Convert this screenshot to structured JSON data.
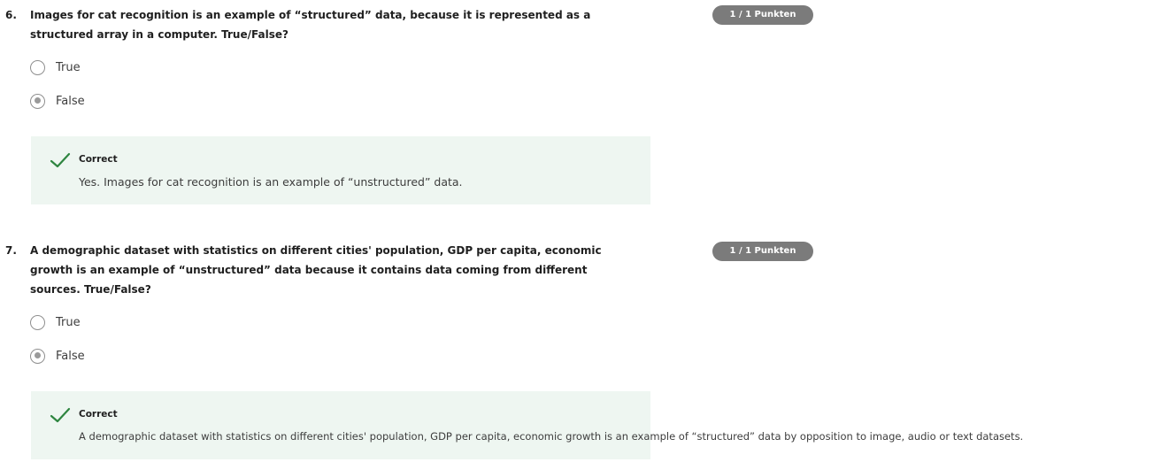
{
  "questions": [
    {
      "number": "6.",
      "prompt": "Images for cat recognition is an example of “structured” data, because it is represented as a structured array in a computer. True/False?",
      "points": "1 / 1 Punkten",
      "options": [
        {
          "label": "True",
          "selected": false
        },
        {
          "label": "False",
          "selected": true
        }
      ],
      "feedback": {
        "status": "Correct",
        "text": "Yes. Images for cat recognition is an example of “unstructured” data."
      }
    },
    {
      "number": "7.",
      "prompt": "A demographic dataset with statistics on different cities' population, GDP per capita, economic growth is an example of “unstructured” data because it contains data coming from different sources. True/False?",
      "points": "1 / 1 Punkten",
      "options": [
        {
          "label": "True",
          "selected": false
        },
        {
          "label": "False",
          "selected": true
        }
      ],
      "feedback": {
        "status": "Correct",
        "text": "A demographic dataset with statistics on different cities' population, GDP per capita, economic growth is an example of “structured” data by opposition to image, audio or text datasets."
      }
    }
  ],
  "colors": {
    "badge": "#7b7b7b",
    "feedback_bg": "#eef6f1",
    "check": "#2e8540"
  },
  "icons": {
    "feedback": "checkmark-icon"
  }
}
